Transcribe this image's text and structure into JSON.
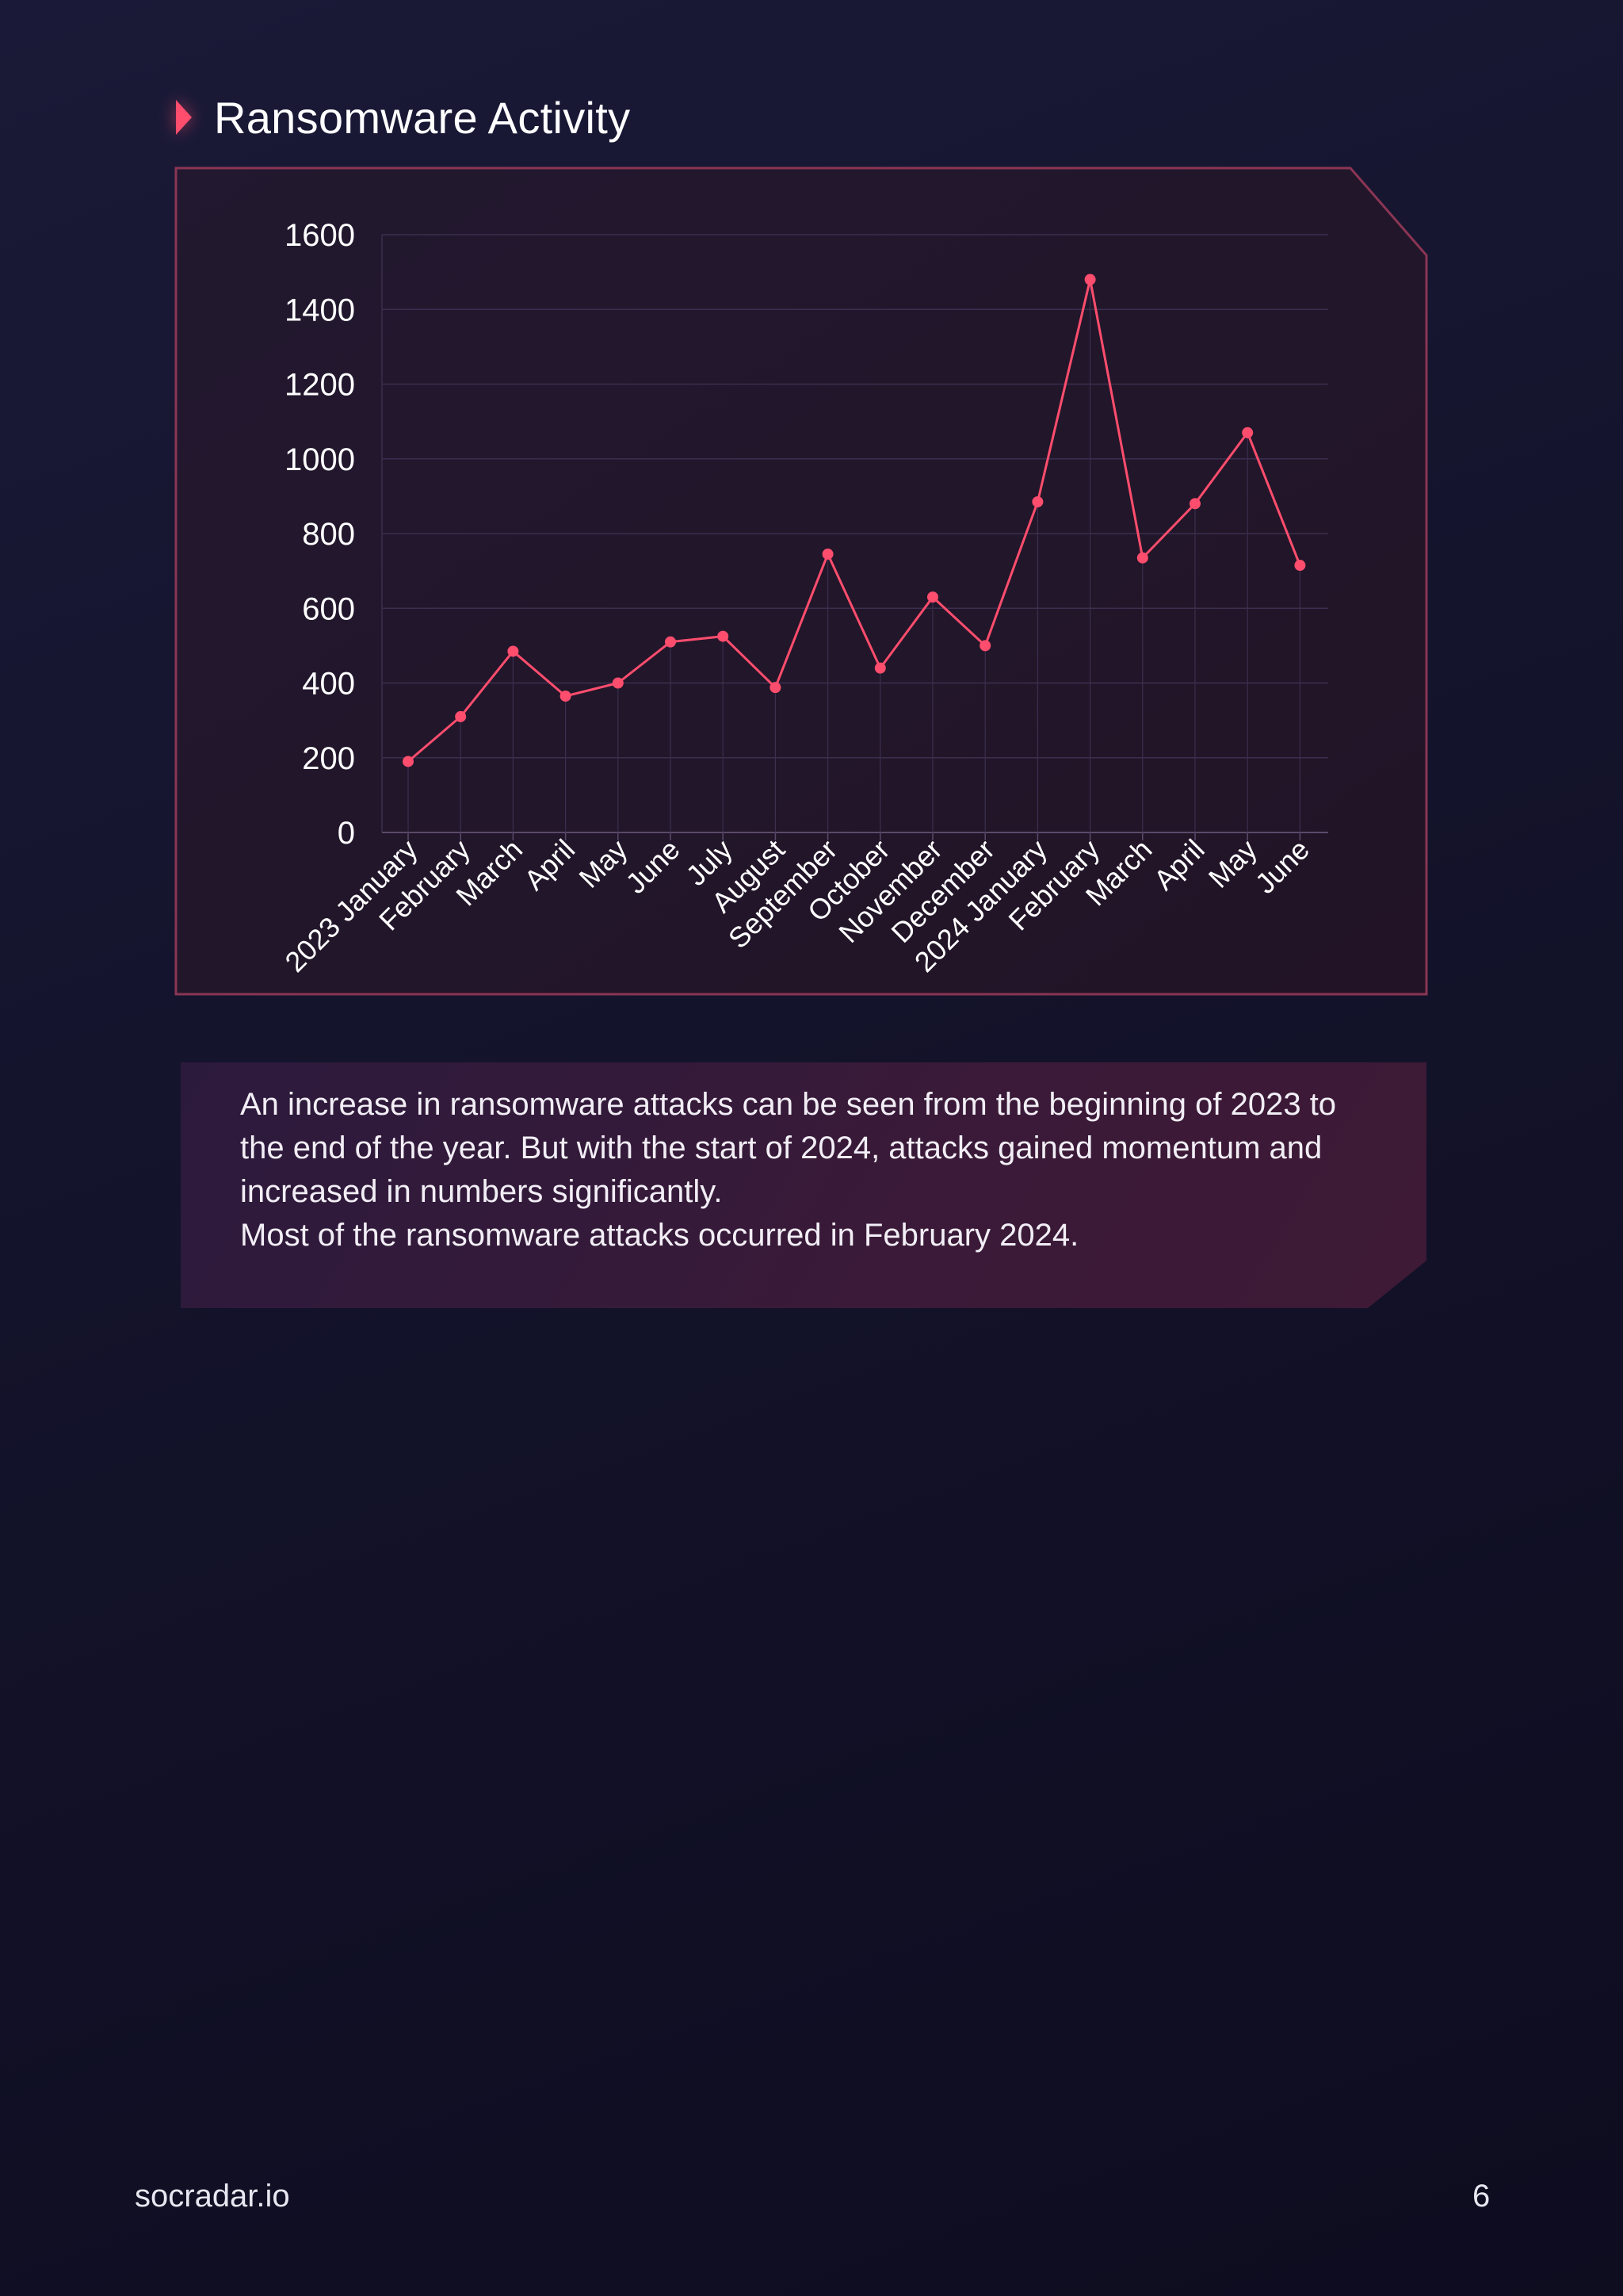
{
  "page": {
    "title": "Ransomware Activity",
    "summary": [
      "An increase in ransomware attacks can be seen from the beginning of 2023 to the end of the year. But with the start of 2024, attacks gained momentum and increased in numbers significantly.",
      "Most of the ransomware attacks occurred in February 2024."
    ],
    "footer_brand": "socradar.io",
    "page_number": "6"
  },
  "colors": {
    "accent": "#ff4d6d",
    "panel_border": "#8a3553",
    "grid": "#3a2f4e",
    "text": "#ffffff"
  },
  "chart_data": {
    "type": "line",
    "title": "",
    "xlabel": "",
    "ylabel": "",
    "ylim": [
      0,
      1600
    ],
    "yticks": [
      0,
      200,
      400,
      600,
      800,
      1000,
      1200,
      1400,
      1600
    ],
    "grid": true,
    "categories": [
      "2023 January",
      "February",
      "March",
      "April",
      "May",
      "June",
      "July",
      "August",
      "September",
      "October",
      "November",
      "December",
      "2024 January",
      "February",
      "March",
      "April",
      "May",
      "June"
    ],
    "series": [
      {
        "values": [
          190,
          310,
          485,
          365,
          400,
          510,
          525,
          388,
          745,
          440,
          630,
          500,
          885,
          1480,
          735,
          880,
          1070,
          715
        ]
      }
    ]
  }
}
